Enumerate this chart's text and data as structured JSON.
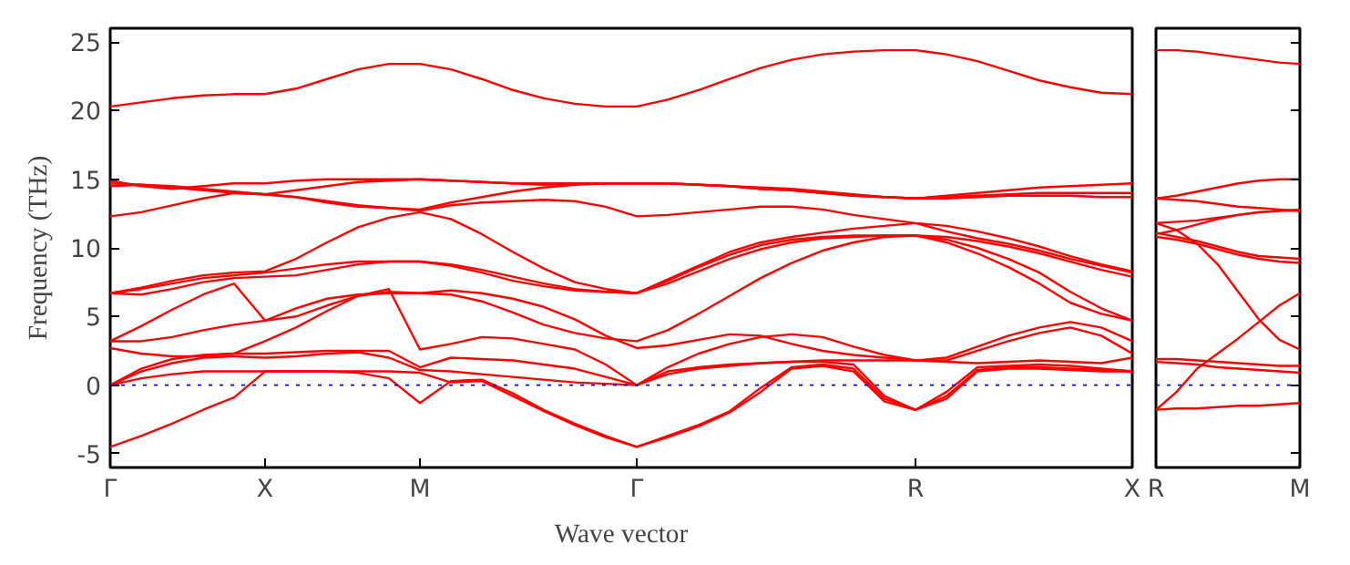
{
  "chart_data": [
    {
      "type": "line",
      "xlabel": "Wave vector",
      "ylabel": "Frequency (THz)",
      "line_style": "solid",
      "ylim": [
        -6,
        26
      ],
      "categories": [
        "Γ",
        null,
        null,
        null,
        null,
        "X",
        null,
        null,
        null,
        null,
        "M",
        null,
        null,
        null,
        null,
        null,
        null,
        "Γ",
        null,
        null,
        null,
        null,
        null,
        null,
        null,
        null,
        "R",
        null,
        null,
        null,
        null,
        null,
        null,
        "X"
      ],
      "yticks": [
        -5,
        0,
        5,
        10,
        15,
        20,
        25
      ],
      "ref_lines": [
        {
          "axis": "y",
          "value": 0,
          "color": "#0000ff",
          "line_style": "dotted"
        }
      ],
      "series": [
        {
          "color": "#ff0000",
          "values": [
            -4.5,
            -3.7,
            -2.8,
            -1.8,
            -0.9,
            1.0,
            1.0,
            1.0,
            0.9,
            0.5,
            -1.3,
            0.3,
            0.4,
            -0.6,
            -1.8,
            -2.8,
            -3.7,
            -4.5,
            -3.8,
            -3.0,
            -2.0,
            -0.5,
            1.2,
            1.4,
            1.0,
            -1.2,
            -1.8,
            -1.0,
            1.0,
            1.2,
            1.2,
            1.1,
            1.0,
            1.0
          ]
        },
        {
          "color": "#ff0000",
          "values": [
            0,
            0.5,
            0.8,
            1.0,
            1.0,
            1.0,
            1.0,
            1.0,
            1.0,
            1.0,
            0.9,
            0.2,
            0.3,
            -0.8,
            -1.9,
            -2.9,
            -3.8,
            -4.5,
            -3.7,
            -2.9,
            -1.9,
            -0.2,
            1.3,
            1.5,
            1.2,
            -1.0,
            -1.8,
            -0.8,
            1.1,
            1.3,
            1.3,
            1.2,
            1.1,
            1.0
          ]
        },
        {
          "color": "#ff0000",
          "values": [
            0,
            1.0,
            1.6,
            2.0,
            2.1,
            2.0,
            2.1,
            2.3,
            2.4,
            2.0,
            1.1,
            1.0,
            0.8,
            0.6,
            0.4,
            0.2,
            0.1,
            0,
            0.8,
            1.2,
            1.4,
            1.6,
            1.7,
            1.7,
            1.5,
            -0.8,
            -1.8,
            -0.5,
            1.3,
            1.4,
            1.5,
            1.4,
            1.2,
            1.0
          ]
        },
        {
          "color": "#ff0000",
          "values": [
            0,
            1.2,
            1.9,
            2.2,
            2.3,
            2.3,
            2.4,
            2.5,
            2.5,
            2.5,
            1.3,
            2.0,
            1.9,
            1.8,
            1.5,
            1.2,
            0.6,
            0,
            1.0,
            1.3,
            1.5,
            1.6,
            1.7,
            1.8,
            1.8,
            1.8,
            1.8,
            1.7,
            1.6,
            1.7,
            1.8,
            1.7,
            1.6,
            2.0
          ]
        },
        {
          "color": "#ff0000",
          "values": [
            2.7,
            2.3,
            2.1,
            2.1,
            2.3,
            3.2,
            4.2,
            5.4,
            6.5,
            7.0,
            2.6,
            3.0,
            3.5,
            3.4,
            3.0,
            2.6,
            1.5,
            0,
            1.3,
            2.3,
            3.0,
            3.5,
            3.7,
            3.5,
            2.8,
            2.2,
            1.8,
            1.8,
            2.5,
            3.2,
            3.8,
            4.2,
            3.6,
            2.3
          ]
        },
        {
          "color": "#ff0000",
          "values": [
            3.2,
            3.2,
            3.5,
            4.0,
            4.4,
            4.7,
            5.0,
            5.8,
            6.5,
            6.8,
            6.7,
            6.9,
            6.7,
            6.3,
            5.7,
            4.8,
            3.6,
            2.7,
            2.9,
            3.3,
            3.7,
            3.6,
            3.0,
            2.5,
            2.2,
            2.0,
            1.8,
            2.0,
            2.8,
            3.6,
            4.2,
            4.6,
            4.2,
            3.2
          ]
        },
        {
          "color": "#ff0000",
          "values": [
            3.2,
            4.3,
            5.5,
            6.6,
            7.4,
            4.7,
            5.6,
            6.3,
            6.6,
            6.7,
            6.7,
            6.6,
            6.1,
            5.3,
            4.4,
            3.8,
            3.4,
            3.2,
            4.0,
            5.2,
            6.5,
            7.8,
            8.9,
            9.8,
            10.4,
            10.8,
            10.9,
            10.4,
            9.6,
            8.6,
            7.4,
            6.0,
            5.2,
            4.7
          ]
        },
        {
          "color": "#ff0000",
          "values": [
            6.7,
            6.6,
            7.0,
            7.5,
            7.8,
            7.9,
            8.0,
            8.4,
            8.8,
            9.0,
            9.0,
            8.7,
            8.2,
            7.6,
            7.2,
            6.9,
            6.8,
            6.7,
            7.4,
            8.3,
            9.2,
            9.9,
            10.4,
            10.7,
            10.8,
            10.9,
            10.9,
            10.6,
            10.0,
            9.2,
            8.2,
            6.8,
            5.6,
            4.7
          ]
        },
        {
          "color": "#ff0000",
          "values": [
            6.7,
            7.0,
            7.4,
            7.8,
            8.0,
            8.2,
            8.5,
            8.8,
            9.0,
            9.0,
            9.0,
            8.8,
            8.4,
            7.9,
            7.4,
            7.0,
            6.8,
            6.7,
            7.6,
            8.6,
            9.5,
            10.2,
            10.6,
            10.8,
            10.9,
            10.9,
            10.9,
            10.8,
            10.5,
            10.1,
            9.6,
            9.0,
            8.4,
            7.9
          ]
        },
        {
          "color": "#ff0000",
          "values": [
            6.7,
            7.1,
            7.6,
            8.0,
            8.2,
            8.3,
            9.2,
            10.4,
            11.5,
            12.2,
            12.6,
            12.1,
            11.0,
            9.7,
            8.5,
            7.5,
            7.0,
            6.7,
            7.7,
            8.7,
            9.7,
            10.4,
            10.8,
            11.1,
            11.4,
            11.6,
            11.8,
            11.2,
            10.7,
            10.3,
            9.8,
            9.2,
            8.7,
            8.2
          ]
        },
        {
          "color": "#ff0000",
          "values": [
            12.3,
            12.6,
            13.1,
            13.6,
            14.0,
            13.9,
            13.7,
            13.4,
            13.1,
            12.9,
            12.7,
            13.1,
            13.3,
            13.4,
            13.5,
            13.4,
            13.0,
            12.3,
            12.4,
            12.6,
            12.8,
            13.0,
            13.0,
            12.8,
            12.4,
            12.1,
            11.8,
            11.6,
            11.2,
            10.7,
            10.1,
            9.4,
            8.8,
            8.3
          ]
        },
        {
          "color": "#ff0000",
          "values": [
            14.5,
            14.6,
            14.5,
            14.3,
            14.1,
            13.9,
            13.7,
            13.3,
            13.0,
            12.9,
            12.8,
            13.3,
            13.7,
            14.1,
            14.4,
            14.6,
            14.7,
            14.7,
            14.7,
            14.6,
            14.5,
            14.3,
            14.2,
            14.0,
            13.8,
            13.7,
            13.6,
            13.6,
            13.7,
            13.8,
            13.8,
            13.8,
            13.7,
            13.7
          ]
        },
        {
          "color": "#ff0000",
          "values": [
            14.7,
            14.6,
            14.4,
            14.2,
            14.0,
            13.9,
            14.2,
            14.5,
            14.8,
            14.9,
            15.0,
            14.9,
            14.8,
            14.7,
            14.6,
            14.7,
            14.7,
            14.7,
            14.7,
            14.6,
            14.5,
            14.3,
            14.2,
            14.0,
            13.8,
            13.7,
            13.6,
            13.7,
            13.8,
            13.9,
            14.0,
            14.0,
            14.0,
            14.0
          ]
        },
        {
          "color": "#ff0000",
          "values": [
            14.9,
            14.5,
            14.3,
            14.5,
            14.7,
            14.7,
            14.9,
            15.0,
            15.0,
            15.0,
            15.0,
            14.9,
            14.8,
            14.7,
            14.7,
            14.7,
            14.7,
            14.7,
            14.7,
            14.6,
            14.5,
            14.4,
            14.3,
            14.1,
            13.9,
            13.7,
            13.6,
            13.8,
            14.0,
            14.2,
            14.4,
            14.5,
            14.6,
            14.7
          ]
        },
        {
          "color": "#ff0000",
          "values": [
            20.3,
            20.6,
            20.9,
            21.1,
            21.2,
            21.2,
            21.6,
            22.3,
            23.0,
            23.4,
            23.4,
            23.0,
            22.3,
            21.5,
            20.9,
            20.5,
            20.3,
            20.3,
            20.8,
            21.5,
            22.3,
            23.1,
            23.7,
            24.1,
            24.3,
            24.4,
            24.4,
            24.1,
            23.6,
            22.9,
            22.2,
            21.7,
            21.3,
            21.2
          ]
        }
      ]
    },
    {
      "type": "line",
      "line_style": "solid",
      "tick_labels": "x",
      "ylim": [
        -6,
        26
      ],
      "categories": [
        "R",
        null,
        null,
        null,
        null,
        null,
        null,
        "M"
      ],
      "yticks": [
        -5,
        0,
        5,
        10,
        15,
        20,
        25
      ],
      "ref_lines": [
        {
          "axis": "y",
          "value": 0,
          "color": "#0000ff",
          "line_style": "dotted"
        }
      ],
      "series": [
        {
          "color": "#ff0000",
          "values": [
            -1.8,
            -1.7,
            -1.7,
            -1.6,
            -1.5,
            -1.5,
            -1.4,
            -1.3
          ]
        },
        {
          "color": "#ff0000",
          "values": [
            -1.8,
            -0.5,
            1.2,
            2.3,
            3.4,
            4.6,
            5.8,
            6.7
          ]
        },
        {
          "color": "#ff0000",
          "values": [
            1.7,
            1.6,
            1.5,
            1.3,
            1.2,
            1.1,
            1.0,
            0.9
          ]
        },
        {
          "color": "#ff0000",
          "values": [
            1.9,
            1.9,
            1.8,
            1.7,
            1.6,
            1.5,
            1.4,
            1.4
          ]
        },
        {
          "color": "#ff0000",
          "values": [
            11.8,
            11.3,
            10.3,
            8.8,
            6.8,
            4.8,
            3.3,
            2.6
          ]
        },
        {
          "color": "#ff0000",
          "values": [
            11.1,
            10.8,
            10.5,
            10.1,
            9.7,
            9.4,
            9.3,
            9.2
          ]
        },
        {
          "color": "#ff0000",
          "values": [
            10.8,
            10.6,
            10.3,
            9.9,
            9.5,
            9.2,
            9.0,
            8.9
          ]
        },
        {
          "color": "#ff0000",
          "values": [
            11.8,
            11.9,
            12.0,
            12.2,
            12.4,
            12.6,
            12.7,
            12.7
          ]
        },
        {
          "color": "#ff0000",
          "values": [
            11.0,
            11.3,
            11.7,
            12.1,
            12.4,
            12.6,
            12.7,
            12.8
          ]
        },
        {
          "color": "#ff0000",
          "values": [
            13.6,
            13.5,
            13.4,
            13.2,
            13.0,
            12.9,
            12.8,
            12.7
          ]
        },
        {
          "color": "#ff0000",
          "values": [
            13.6,
            13.8,
            14.1,
            14.4,
            14.7,
            14.9,
            15.0,
            15.0
          ]
        },
        {
          "color": "#ff0000",
          "values": [
            24.4,
            24.4,
            24.3,
            24.1,
            23.9,
            23.7,
            23.5,
            23.4
          ]
        }
      ]
    }
  ]
}
